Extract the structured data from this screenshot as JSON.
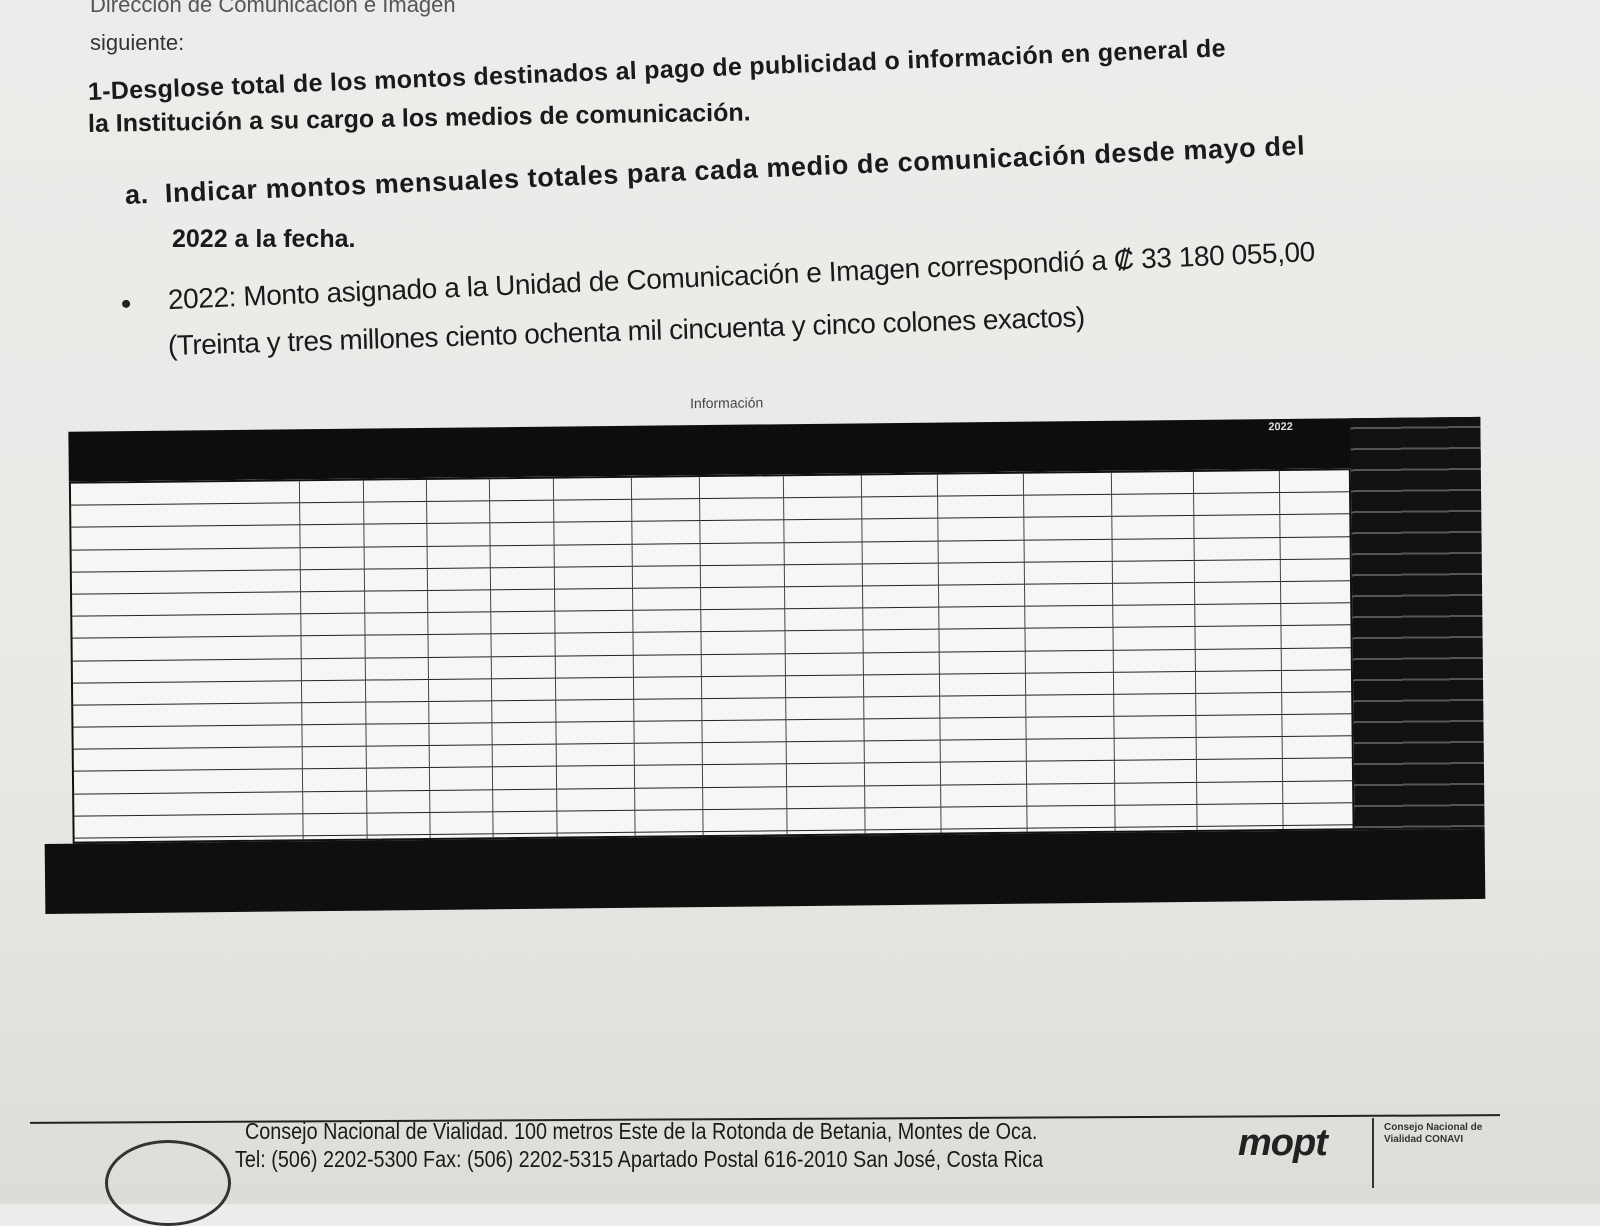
{
  "document": {
    "top_partial": "Dirección de Comunicación e Imagen",
    "intro": "siguiente:",
    "point1_line1": "1-Desglose total de los montos destinados al pago de publicidad o información en general de",
    "point1_line2": "la Institución a su cargo a los medios de comunicación.",
    "item_a_label": "a.",
    "item_a_line1": "Indicar montos mensuales totales para cada medio de comunicación desde mayo del",
    "item_a_line2": "2022 a la fecha.",
    "bullet_line1": "2022: Monto asignado a la Unidad de Comunicación e Imagen correspondió a ₡ 33 180 055,00",
    "bullet_line2": "(Treinta y tres millones ciento ochenta mil cincuenta y cinco colones exactos)"
  },
  "table": {
    "title": "Información",
    "year": "2022",
    "row_count": 17,
    "column_count": 14
  },
  "footer": {
    "line1": "Consejo Nacional de Vialidad.  100 metros Este de la Rotonda de Betania, Montes de Oca.",
    "line2": "Tel: (506) 2202-5300 Fax: (506) 2202-5315 Apartado Postal 616-2010 San José, Costa Rica",
    "logo_text": "mopt",
    "cnv_text": "Consejo Nacional de Vialidad CONAVI"
  }
}
